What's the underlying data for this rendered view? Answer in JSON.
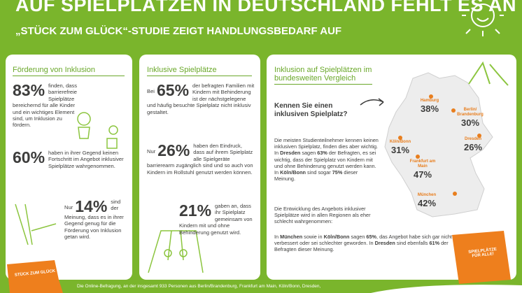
{
  "header": {
    "title": "AUF SPIELPLÄTZEN IN DEUTSCHLAND FEHLT ES AN INKLUSION",
    "subtitle": "„STÜCK ZUM GLÜCK“-STUDIE ZEIGT HANDLUNGSBEDARF AUF"
  },
  "cards": [
    {
      "heading": "Förderung von Inklusion",
      "stats": [
        {
          "value": "83%",
          "text": "finden, dass barrierefreie Spielplätze bereichernd für alle Kinder und ein wichtiges Element sind, um Inklusion zu fördern."
        },
        {
          "value": "60%",
          "text": "haben in ihrer Gegend keinen Fortschritt im Angebot inklusiver Spielplätze wahrgenommen."
        },
        {
          "prefix": "Nur",
          "value": "14%",
          "text": "sind der Meinung, dass es in ihrer Gegend genug für die Förderung von Inklusion getan wird."
        }
      ]
    },
    {
      "heading": "Inklusive Spielplätze",
      "stats": [
        {
          "prefix": "Bei",
          "value": "65%",
          "text": "der befragten Familien mit Kindern mit Behinderung ist der nächstgelegene und häufig besuchte Spielplatz nicht inklusiv gestaltet."
        },
        {
          "prefix": "Nur",
          "value": "26%",
          "text": "haben den Eindruck, dass auf ihrem Spielplatz alle Spielgeräte barrierearm zugänglich sind und so auch von Kindern im Rollstuhl genutzt werden können."
        },
        {
          "value": "21%",
          "text": "gaben an, dass ihr Spielplatz gemeinsam von Kindern mit und ohne Behinderung genutzt wird."
        }
      ]
    }
  ],
  "comparison": {
    "heading": "Inklusion auf Spielplätzen im bundesweiten Vergleich",
    "question": "Kennen Sie einen inklusiven Spielplatz?",
    "paragraphs": [
      [
        "Die meisten Studienteilnehmer kennen keinen inklusiven Spielplatz, finden dies aber wichtig. In ",
        "Dresden",
        " sagen ",
        "63%",
        " der Befragten, es sei wichtig, dass der Spielplatz von Kindern mit und ohne Behinderung genutzt werden kann. In ",
        "Köln/Bonn",
        " sind sogar ",
        "75%",
        " dieser Meinung."
      ],
      [
        "Die Entwicklung des Angebots inklusiver Spielplätze wird in allen Regionen als eher schlecht wahrgenommen:"
      ],
      [
        "In ",
        "München",
        " sowie in ",
        "Köln/Bonn",
        " sagen ",
        "65%",
        ", das Angebot habe sich gar nicht verbessert oder sei schlechter geworden. In ",
        "Dresden",
        " sind ebenfalls ",
        "61%",
        " der Befragten dieser Meinung."
      ]
    ],
    "cities": [
      {
        "name": "Hamburg",
        "value": "38%"
      },
      {
        "name": "Berlin/ Brandenburg",
        "value": "30%"
      },
      {
        "name": "Köln/Bonn",
        "value": "31%"
      },
      {
        "name": "Dresden",
        "value": "26%"
      },
      {
        "name": "Frankfurt am Main",
        "value": "47%"
      },
      {
        "name": "München",
        "value": "42%"
      }
    ]
  },
  "badges": [
    "STÜCK ZUM GLÜCK",
    "SPIELPLÄTZE FÜR ALLE!"
  ],
  "footer": "Die Online-Befragung, an der insgesamt 933 Personen aus Berlin/Brandenburg, Frankfurt am Main, Köln/Bonn, Dresden,"
}
